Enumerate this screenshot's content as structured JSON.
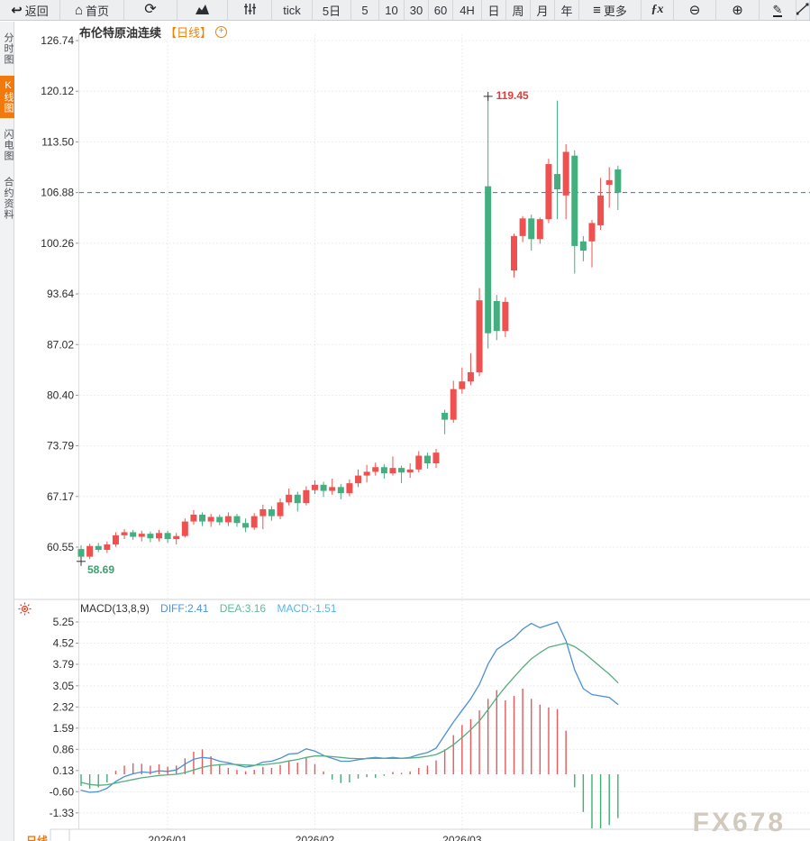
{
  "toolbar": {
    "items": [
      {
        "name": "back-button",
        "icon": "back-arrow-icon",
        "label": "返回"
      },
      {
        "name": "home-button",
        "icon": "home-icon",
        "label": "首页"
      },
      {
        "name": "refresh-button",
        "icon": "refresh-icon",
        "label": ""
      },
      {
        "name": "area-chart-button",
        "icon": "area-chart-icon",
        "label": ""
      },
      {
        "name": "candlestick-settings-button",
        "icon": "sliders-icon",
        "label": ""
      },
      {
        "name": "period-tick-button",
        "icon": "",
        "label": "tick"
      },
      {
        "name": "period-5day-button",
        "icon": "",
        "label": "5日"
      },
      {
        "name": "period-5-button",
        "icon": "",
        "label": "5"
      },
      {
        "name": "period-10-button",
        "icon": "",
        "label": "10"
      },
      {
        "name": "period-30-button",
        "icon": "",
        "label": "30"
      },
      {
        "name": "period-60-button",
        "icon": "",
        "label": "60"
      },
      {
        "name": "period-4h-button",
        "icon": "",
        "label": "4H"
      },
      {
        "name": "period-day-button",
        "icon": "",
        "label": "日"
      },
      {
        "name": "period-week-button",
        "icon": "",
        "label": "周"
      },
      {
        "name": "period-month-button",
        "icon": "",
        "label": "月"
      },
      {
        "name": "period-year-button",
        "icon": "",
        "label": "年"
      },
      {
        "name": "more-button",
        "icon": "menu-icon",
        "label": "更多"
      },
      {
        "name": "indicator-fx-button",
        "icon": "",
        "label": "ƒx",
        "cls": "fx"
      },
      {
        "name": "zoom-out-button",
        "icon": "zoom-out-icon",
        "label": ""
      },
      {
        "name": "zoom-in-button",
        "icon": "zoom-in-icon",
        "label": ""
      },
      {
        "name": "draw-button",
        "icon": "pencil-icon",
        "label": ""
      },
      {
        "name": "trendline-button",
        "icon": "line-tool-icon",
        "label": ""
      }
    ]
  },
  "sidebar": {
    "tabs": [
      {
        "name": "tab-time-share",
        "label": "分时图",
        "active": false
      },
      {
        "name": "tab-kline",
        "label": "K线图",
        "active": true
      },
      {
        "name": "tab-lightning",
        "label": "闪电图",
        "active": false
      },
      {
        "name": "tab-contract-info",
        "label": "合约资料",
        "active": false
      }
    ]
  },
  "chart_header": {
    "title": "布伦特原油连续",
    "period_tag": "【日线】",
    "add_icon": "+"
  },
  "macd_header": {
    "name": "MACD(13,8,9)",
    "diff": "DIFF:2.41",
    "dea": "DEA:3.16",
    "macd": "MACD:-1.51"
  },
  "watermark": "FX678",
  "bottom_tab": "日线",
  "chart_data": {
    "type": "candlestick",
    "symbol": "布伦特原油连续",
    "period": "日线",
    "y_ticks_main": [
      126.74,
      120.12,
      113.5,
      106.88,
      100.26,
      93.64,
      87.02,
      80.4,
      73.79,
      67.17,
      60.55
    ],
    "y_ticks_macd": [
      5.25,
      4.52,
      3.79,
      3.05,
      2.32,
      1.59,
      0.86,
      0.13,
      -0.6,
      -1.33
    ],
    "x_labels": [
      {
        "text": "2026/01",
        "index": 10
      },
      {
        "text": "2026/02",
        "index": 27
      },
      {
        "text": "2026/03",
        "index": 44
      }
    ],
    "last_price_line": 106.88,
    "high_annotation": {
      "value": "119.45",
      "index": 47
    },
    "low_annotation": {
      "value": "58.69",
      "index": 0
    },
    "colors": {
      "up": "#ef5151",
      "down": "#43ae7e",
      "diff_line": "#4a90d5",
      "dea_line": "#53ae7e",
      "grid": "#e8e8e8",
      "dashed_line": "#1b7fd6",
      "high_text": "#e23c3c",
      "low_text": "#3da06c",
      "hist_up": "#e35a5a",
      "hist_down": "#3fae74",
      "axis_text": "#2b2b2b",
      "accent_orange": "#f08200"
    },
    "candles": [
      [
        60.3,
        60.8,
        58.69,
        59.3
      ],
      [
        59.3,
        61.0,
        59.0,
        60.7
      ],
      [
        60.7,
        61.1,
        59.9,
        60.2
      ],
      [
        60.2,
        61.3,
        59.8,
        60.9
      ],
      [
        60.9,
        62.5,
        60.6,
        62.1
      ],
      [
        62.1,
        62.9,
        61.6,
        62.5
      ],
      [
        62.5,
        62.8,
        61.5,
        61.9
      ],
      [
        61.9,
        62.7,
        61.3,
        62.3
      ],
      [
        62.3,
        62.6,
        61.2,
        61.7
      ],
      [
        61.7,
        62.8,
        61.3,
        62.4
      ],
      [
        62.4,
        62.7,
        61.1,
        61.6
      ],
      [
        61.6,
        62.4,
        60.9,
        62.0
      ],
      [
        62.0,
        64.3,
        61.8,
        63.9
      ],
      [
        63.9,
        65.4,
        63.5,
        64.8
      ],
      [
        64.8,
        65.1,
        63.3,
        63.9
      ],
      [
        63.9,
        64.9,
        63.2,
        64.5
      ],
      [
        64.5,
        64.8,
        63.4,
        63.8
      ],
      [
        63.8,
        65.1,
        63.3,
        64.6
      ],
      [
        64.6,
        64.9,
        63.2,
        63.7
      ],
      [
        63.7,
        64.3,
        62.5,
        63.1
      ],
      [
        63.1,
        65.0,
        62.8,
        64.6
      ],
      [
        64.6,
        66.1,
        62.9,
        65.5
      ],
      [
        65.5,
        65.9,
        64.0,
        64.6
      ],
      [
        64.6,
        66.9,
        64.2,
        66.4
      ],
      [
        66.4,
        68.2,
        66.0,
        67.4
      ],
      [
        67.4,
        67.8,
        65.2,
        66.3
      ],
      [
        66.3,
        68.5,
        66.0,
        68.0
      ],
      [
        68.0,
        69.3,
        67.5,
        68.7
      ],
      [
        68.7,
        69.1,
        67.1,
        67.9
      ],
      [
        67.9,
        69.5,
        67.4,
        68.4
      ],
      [
        68.4,
        68.8,
        66.8,
        67.6
      ],
      [
        67.6,
        69.4,
        67.2,
        68.9
      ],
      [
        68.9,
        70.7,
        68.4,
        69.9
      ],
      [
        69.9,
        71.3,
        69.0,
        70.4
      ],
      [
        70.4,
        71.6,
        69.9,
        71.0
      ],
      [
        71.0,
        71.4,
        69.5,
        70.2
      ],
      [
        70.2,
        72.4,
        69.9,
        70.9
      ],
      [
        70.9,
        71.2,
        68.9,
        70.3
      ],
      [
        70.3,
        71.5,
        69.6,
        70.7
      ],
      [
        70.7,
        73.1,
        70.3,
        72.5
      ],
      [
        72.5,
        72.9,
        70.8,
        71.5
      ],
      [
        71.5,
        73.4,
        70.9,
        72.9
      ],
      [
        78.1,
        78.5,
        75.3,
        77.2
      ],
      [
        77.2,
        82.3,
        76.8,
        81.2
      ],
      [
        81.2,
        84.0,
        80.6,
        82.2
      ],
      [
        82.2,
        85.9,
        81.7,
        83.4
      ],
      [
        83.4,
        94.4,
        82.9,
        92.8
      ],
      [
        107.7,
        119.45,
        86.5,
        88.5
      ],
      [
        92.7,
        93.5,
        87.6,
        88.8
      ],
      [
        88.8,
        93.2,
        88.0,
        92.6
      ],
      [
        96.7,
        101.5,
        95.8,
        101.2
      ],
      [
        101.2,
        103.8,
        100.4,
        103.5
      ],
      [
        103.5,
        104.0,
        99.3,
        100.8
      ],
      [
        100.8,
        103.6,
        100.2,
        103.4
      ],
      [
        103.4,
        111.3,
        102.9,
        110.6
      ],
      [
        109.3,
        118.9,
        103.4,
        107.3
      ],
      [
        106.5,
        113.2,
        103.4,
        112.2
      ],
      [
        111.7,
        112.4,
        96.3,
        99.9
      ],
      [
        100.5,
        101.2,
        97.9,
        99.3
      ],
      [
        100.5,
        103.3,
        97.1,
        102.9
      ],
      [
        102.6,
        108.8,
        102.0,
        106.5
      ],
      [
        107.9,
        110.2,
        104.9,
        108.5
      ],
      [
        109.9,
        110.4,
        104.6,
        106.88
      ]
    ],
    "macd": {
      "params": "(13,8,9)",
      "diff_last": 2.41,
      "dea_last": 3.16,
      "macd_last": -1.51,
      "diff": [
        -0.55,
        -0.62,
        -0.6,
        -0.48,
        -0.25,
        -0.08,
        0.02,
        0.08,
        0.06,
        0.12,
        0.1,
        0.15,
        0.35,
        0.52,
        0.58,
        0.55,
        0.45,
        0.4,
        0.32,
        0.25,
        0.3,
        0.42,
        0.45,
        0.55,
        0.7,
        0.72,
        0.88,
        0.8,
        0.65,
        0.55,
        0.45,
        0.45,
        0.5,
        0.55,
        0.58,
        0.55,
        0.58,
        0.55,
        0.58,
        0.68,
        0.75,
        0.9,
        1.35,
        1.8,
        2.2,
        2.6,
        3.1,
        3.8,
        4.3,
        4.5,
        4.7,
        5.0,
        5.2,
        5.05,
        5.15,
        5.25,
        4.6,
        3.6,
        2.95,
        2.75,
        2.7,
        2.65,
        2.41
      ],
      "dea": [
        -0.28,
        -0.35,
        -0.38,
        -0.36,
        -0.3,
        -0.24,
        -0.18,
        -0.12,
        -0.08,
        -0.04,
        -0.02,
        0.0,
        0.06,
        0.15,
        0.24,
        0.3,
        0.33,
        0.35,
        0.34,
        0.32,
        0.31,
        0.33,
        0.36,
        0.4,
        0.46,
        0.51,
        0.58,
        0.63,
        0.63,
        0.61,
        0.58,
        0.55,
        0.54,
        0.54,
        0.55,
        0.55,
        0.55,
        0.55,
        0.56,
        0.58,
        0.62,
        0.68,
        0.82,
        1.02,
        1.26,
        1.53,
        1.84,
        2.23,
        2.64,
        3.01,
        3.35,
        3.68,
        3.98,
        4.19,
        4.38,
        4.45,
        4.52,
        4.4,
        4.2,
        3.95,
        3.7,
        3.45,
        3.16
      ],
      "hist": [
        -0.4,
        -0.5,
        -0.45,
        -0.28,
        0.12,
        0.3,
        0.38,
        0.36,
        0.3,
        0.34,
        0.26,
        0.3,
        0.55,
        0.78,
        0.86,
        0.62,
        0.35,
        0.22,
        0.15,
        0.1,
        0.15,
        0.25,
        0.22,
        0.32,
        0.46,
        0.4,
        0.58,
        0.35,
        0.1,
        -0.18,
        -0.3,
        -0.28,
        -0.15,
        -0.1,
        -0.12,
        -0.05,
        0.08,
        0.05,
        0.1,
        0.22,
        0.3,
        0.48,
        0.86,
        1.35,
        1.7,
        1.9,
        2.2,
        2.6,
        2.9,
        2.55,
        2.7,
        2.95,
        2.6,
        2.4,
        2.3,
        2.25,
        1.5,
        -0.45,
        -1.3,
        -2.0,
        -1.9,
        -1.75,
        -1.51
      ]
    }
  }
}
